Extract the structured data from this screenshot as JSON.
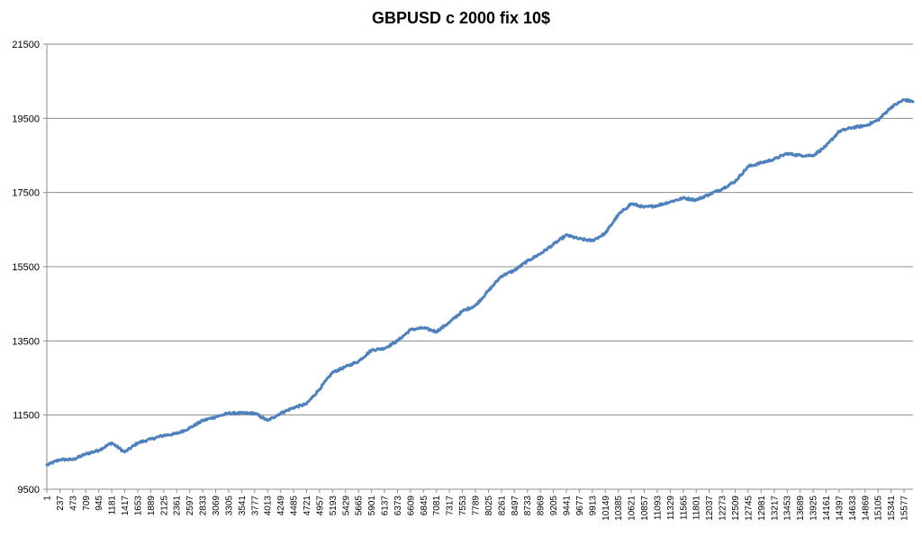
{
  "chart_data": {
    "type": "line",
    "title": "GBPUSD c 2000 fix 10$",
    "xlabel": "",
    "ylabel": "",
    "ylim": [
      9500,
      21500
    ],
    "y_ticks": [
      9500,
      11500,
      13500,
      15500,
      17500,
      19500,
      21500
    ],
    "x_range": [
      1,
      15740
    ],
    "x_tick_labels": [
      "1",
      "237",
      "473",
      "709",
      "945",
      "1181",
      "1417",
      "1653",
      "1889",
      "2125",
      "2361",
      "2597",
      "2833",
      "3069",
      "3305",
      "3541",
      "3777",
      "4013",
      "4249",
      "4485",
      "4721",
      "4957",
      "5193",
      "5429",
      "5665",
      "5901",
      "6137",
      "6373",
      "6609",
      "6845",
      "7081",
      "7317",
      "7553",
      "7789",
      "8025",
      "8261",
      "8497",
      "8733",
      "8969",
      "9205",
      "9441",
      "9677",
      "9913",
      "10149",
      "10385",
      "10621",
      "10857",
      "11093",
      "11329",
      "11565",
      "11801",
      "12037",
      "12273",
      "12509",
      "12745",
      "12981",
      "13217",
      "13453",
      "13689",
      "13925",
      "14161",
      "14397",
      "14633",
      "14869",
      "15105",
      "15341",
      "15577"
    ],
    "grid": "horizontal",
    "legend": "none",
    "series": [
      {
        "color": "#4F81BD",
        "x": [
          1,
          237,
          473,
          709,
          945,
          1181,
          1417,
          1653,
          1889,
          2125,
          2361,
          2597,
          2833,
          3069,
          3305,
          3541,
          3777,
          4013,
          4249,
          4485,
          4721,
          4957,
          5193,
          5429,
          5665,
          5901,
          6137,
          6373,
          6609,
          6845,
          7081,
          7317,
          7553,
          7789,
          8025,
          8261,
          8497,
          8733,
          8969,
          9205,
          9441,
          9677,
          9913,
          10149,
          10385,
          10621,
          10857,
          11093,
          11329,
          11565,
          11801,
          12037,
          12273,
          12509,
          12745,
          12981,
          13217,
          13453,
          13689,
          13925,
          14161,
          14397,
          14633,
          14869,
          15105,
          15341,
          15577,
          15740
        ],
        "y": [
          10150,
          10300,
          10300,
          10450,
          10550,
          10750,
          10500,
          10750,
          10850,
          10950,
          11000,
          11150,
          11350,
          11450,
          11550,
          11550,
          11550,
          11350,
          11550,
          11700,
          11800,
          12200,
          12650,
          12800,
          12950,
          13250,
          13300,
          13500,
          13800,
          13850,
          13750,
          14000,
          14300,
          14450,
          14850,
          15250,
          15400,
          15650,
          15850,
          16100,
          16350,
          16250,
          16200,
          16400,
          16900,
          17200,
          17100,
          17150,
          17250,
          17350,
          17300,
          17450,
          17600,
          17800,
          18200,
          18300,
          18400,
          18550,
          18500,
          18500,
          18750,
          19150,
          19250,
          19300,
          19450,
          19800,
          20000,
          19950
        ]
      }
    ]
  }
}
